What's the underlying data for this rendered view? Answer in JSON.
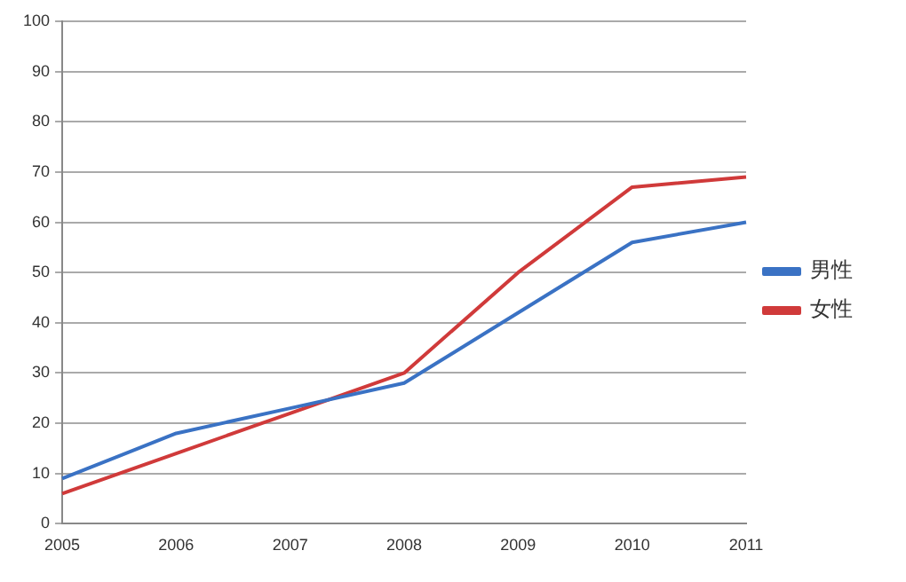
{
  "chart_data": {
    "type": "line",
    "categories": [
      "2005",
      "2006",
      "2007",
      "2008",
      "2009",
      "2010",
      "2011"
    ],
    "series": [
      {
        "name": "男性",
        "color": "#3a72c4",
        "values": [
          9,
          18,
          23,
          28,
          42,
          56,
          60
        ]
      },
      {
        "name": "女性",
        "color": "#d03a3a",
        "values": [
          6,
          14,
          22,
          30,
          50,
          67,
          69
        ]
      }
    ],
    "ylim": [
      0,
      100
    ],
    "yticks": [
      0,
      10,
      20,
      30,
      40,
      50,
      60,
      70,
      80,
      90,
      100
    ],
    "grid": "y",
    "legend": "right",
    "marker": "none",
    "line_style": "solid"
  }
}
